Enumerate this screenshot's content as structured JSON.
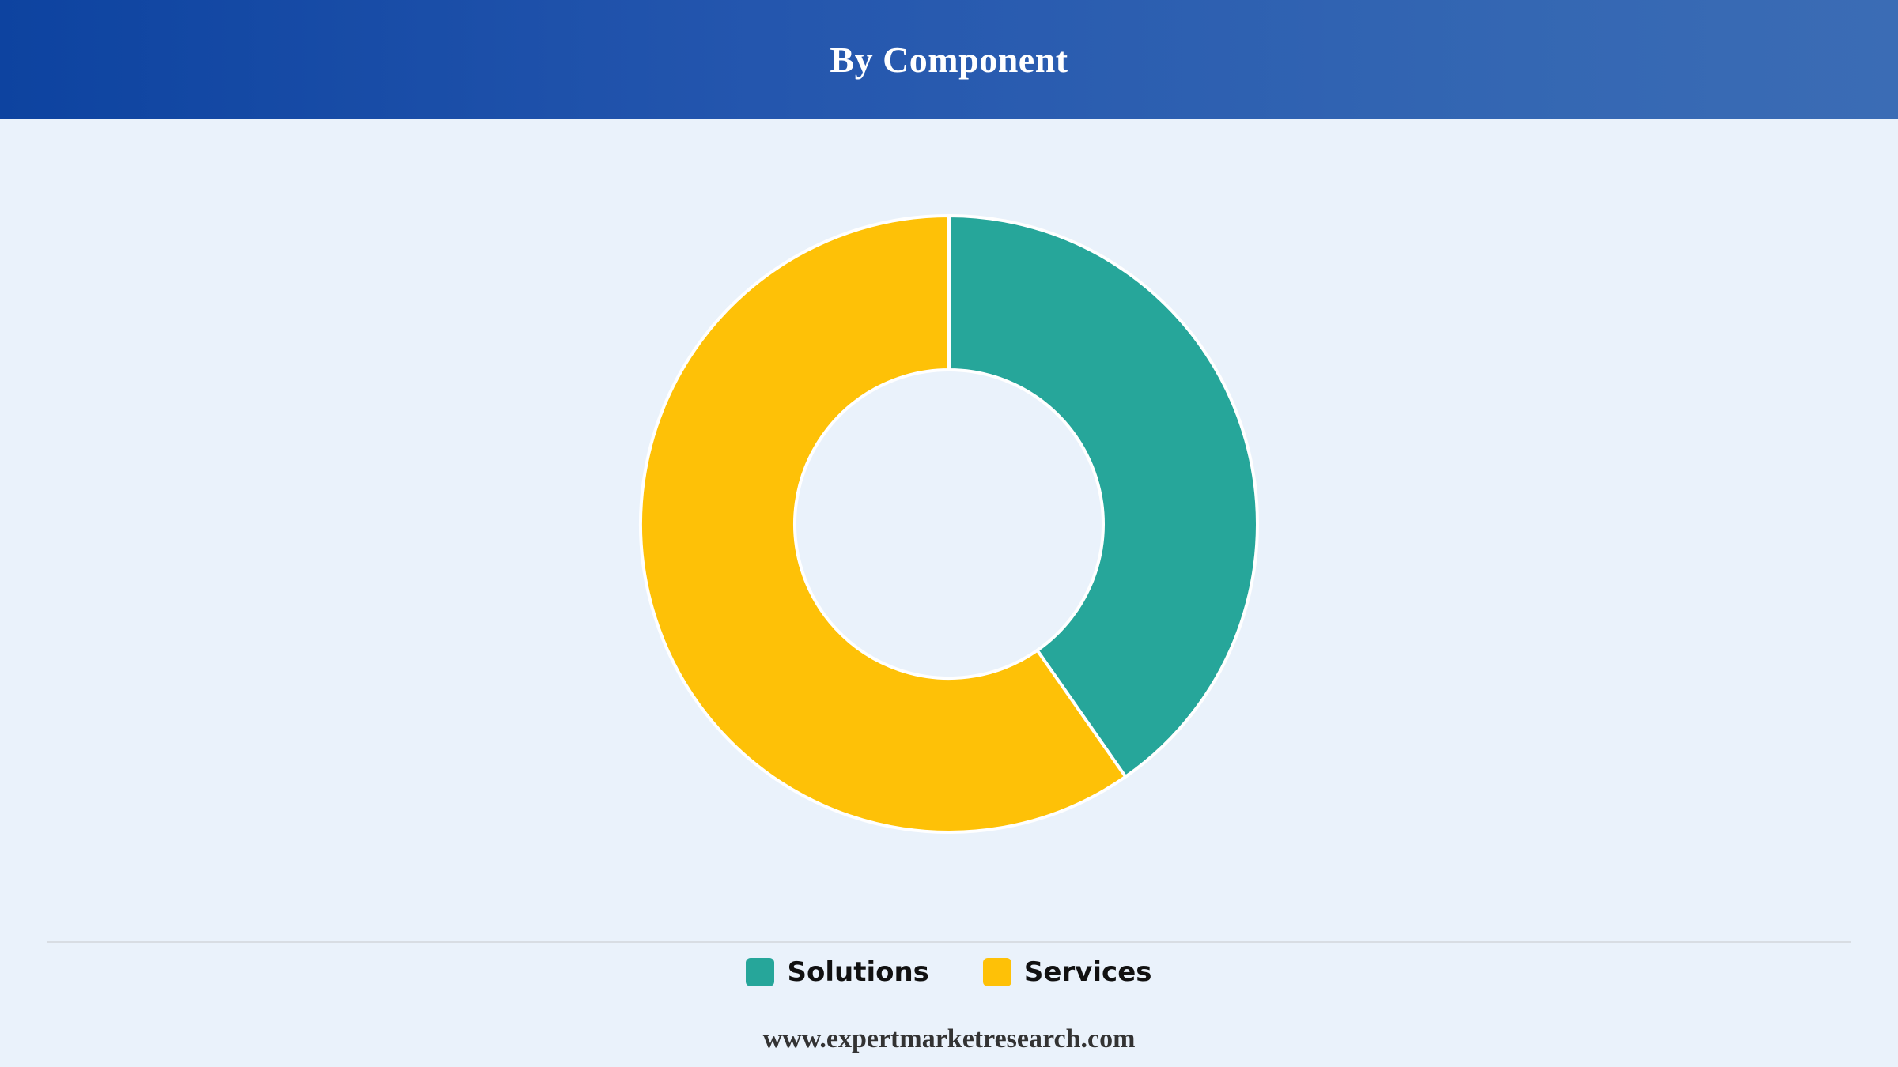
{
  "header": {
    "title": "By Component"
  },
  "chart_data": {
    "type": "pie",
    "title": "By Component",
    "donut": true,
    "categories": [
      "Solutions",
      "Services"
    ],
    "values": [
      40.3,
      59.7
    ],
    "colors": [
      "#26a69a",
      "#fec107"
    ],
    "legend_position": "bottom"
  },
  "legend": {
    "items": [
      {
        "label": "Solutions",
        "color": "#26a69a"
      },
      {
        "label": "Services",
        "color": "#fec107"
      }
    ]
  },
  "footer": {
    "url": "www.expertmarketresearch.com"
  }
}
